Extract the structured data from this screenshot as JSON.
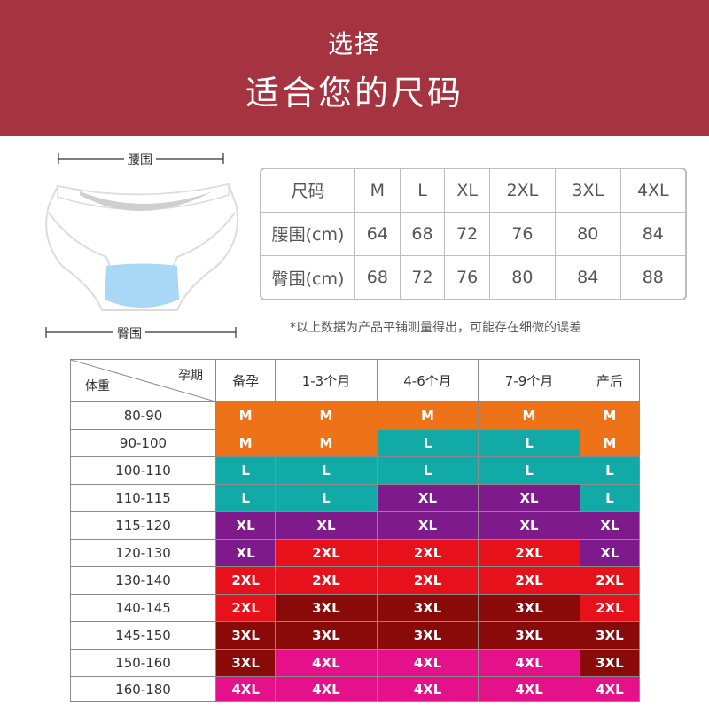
{
  "banner": {
    "line1": "选择",
    "line2": "适合您的尺码"
  },
  "garment": {
    "waist_label": "腰围",
    "hip_label": "臀围"
  },
  "size_table": {
    "header": [
      "尺码",
      "M",
      "L",
      "XL",
      "2XL",
      "3XL",
      "4XL"
    ],
    "rows": [
      [
        "腰围(cm)",
        "64",
        "68",
        "72",
        "76",
        "80",
        "84"
      ],
      [
        "臀围(cm)",
        "68",
        "72",
        "76",
        "80",
        "84",
        "88"
      ]
    ]
  },
  "note": "*以上数据为产品平铺测量得出，可能存在细微的误差",
  "rec_table": {
    "corner_top": "孕期",
    "corner_bottom": "体重",
    "columns": [
      "备孕",
      "1-3个月",
      "4-6个月",
      "7-9个月",
      "产后"
    ],
    "rows": [
      {
        "weight": "80-90",
        "sizes": [
          "M",
          "M",
          "M",
          "M",
          "M"
        ]
      },
      {
        "weight": "90-100",
        "sizes": [
          "M",
          "M",
          "L",
          "L",
          "M"
        ]
      },
      {
        "weight": "100-110",
        "sizes": [
          "L",
          "L",
          "L",
          "L",
          "L"
        ]
      },
      {
        "weight": "110-115",
        "sizes": [
          "L",
          "L",
          "XL",
          "XL",
          "L"
        ]
      },
      {
        "weight": "115-120",
        "sizes": [
          "XL",
          "XL",
          "XL",
          "XL",
          "XL"
        ]
      },
      {
        "weight": "120-130",
        "sizes": [
          "XL",
          "2XL",
          "2XL",
          "2XL",
          "XL"
        ]
      },
      {
        "weight": "130-140",
        "sizes": [
          "2XL",
          "2XL",
          "2XL",
          "2XL",
          "2XL"
        ]
      },
      {
        "weight": "140-145",
        "sizes": [
          "2XL",
          "3XL",
          "3XL",
          "3XL",
          "2XL"
        ]
      },
      {
        "weight": "145-150",
        "sizes": [
          "3XL",
          "3XL",
          "3XL",
          "3XL",
          "3XL"
        ]
      },
      {
        "weight": "150-160",
        "sizes": [
          "3XL",
          "4XL",
          "4XL",
          "4XL",
          "3XL"
        ]
      },
      {
        "weight": "160-180",
        "sizes": [
          "4XL",
          "4XL",
          "4XL",
          "4XL",
          "4XL"
        ]
      }
    ]
  },
  "size_colors": {
    "M": "#ee7318",
    "L": "#12aaa7",
    "XL": "#7e1a8c",
    "2XL": "#e6111b",
    "3XL": "#8a0a0a",
    "4XL": "#e5118a"
  },
  "colors": {
    "banner": "#a63440"
  }
}
